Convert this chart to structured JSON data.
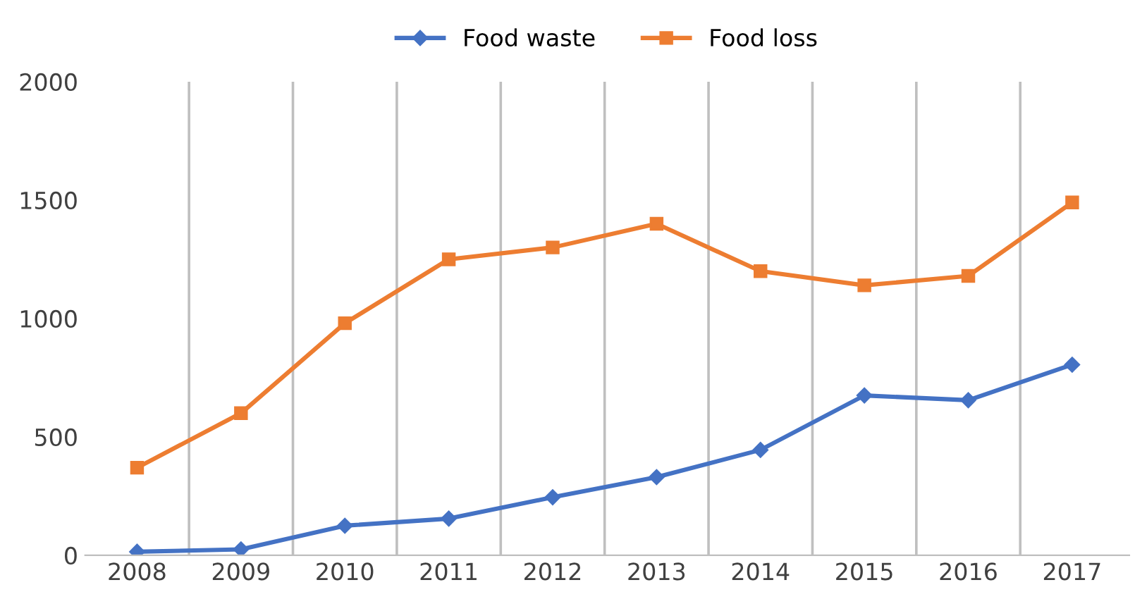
{
  "chart_data": {
    "type": "line",
    "categories": [
      "2008",
      "2009",
      "2010",
      "2011",
      "2012",
      "2013",
      "2014",
      "2015",
      "2016",
      "2017"
    ],
    "series": [
      {
        "name": "Food waste",
        "color": "#4472c4",
        "marker": "diamond",
        "values": [
          15,
          25,
          125,
          155,
          245,
          330,
          445,
          675,
          655,
          805
        ]
      },
      {
        "name": "Food loss",
        "color": "#ed7d31",
        "marker": "square",
        "values": [
          370,
          600,
          980,
          1250,
          1300,
          1400,
          1200,
          1140,
          1180,
          1490
        ]
      }
    ],
    "ylim": [
      0,
      2000
    ],
    "yticks": [
      0,
      500,
      1000,
      1500,
      2000
    ],
    "grid": "x",
    "legend": "top",
    "line_style": "solid"
  }
}
